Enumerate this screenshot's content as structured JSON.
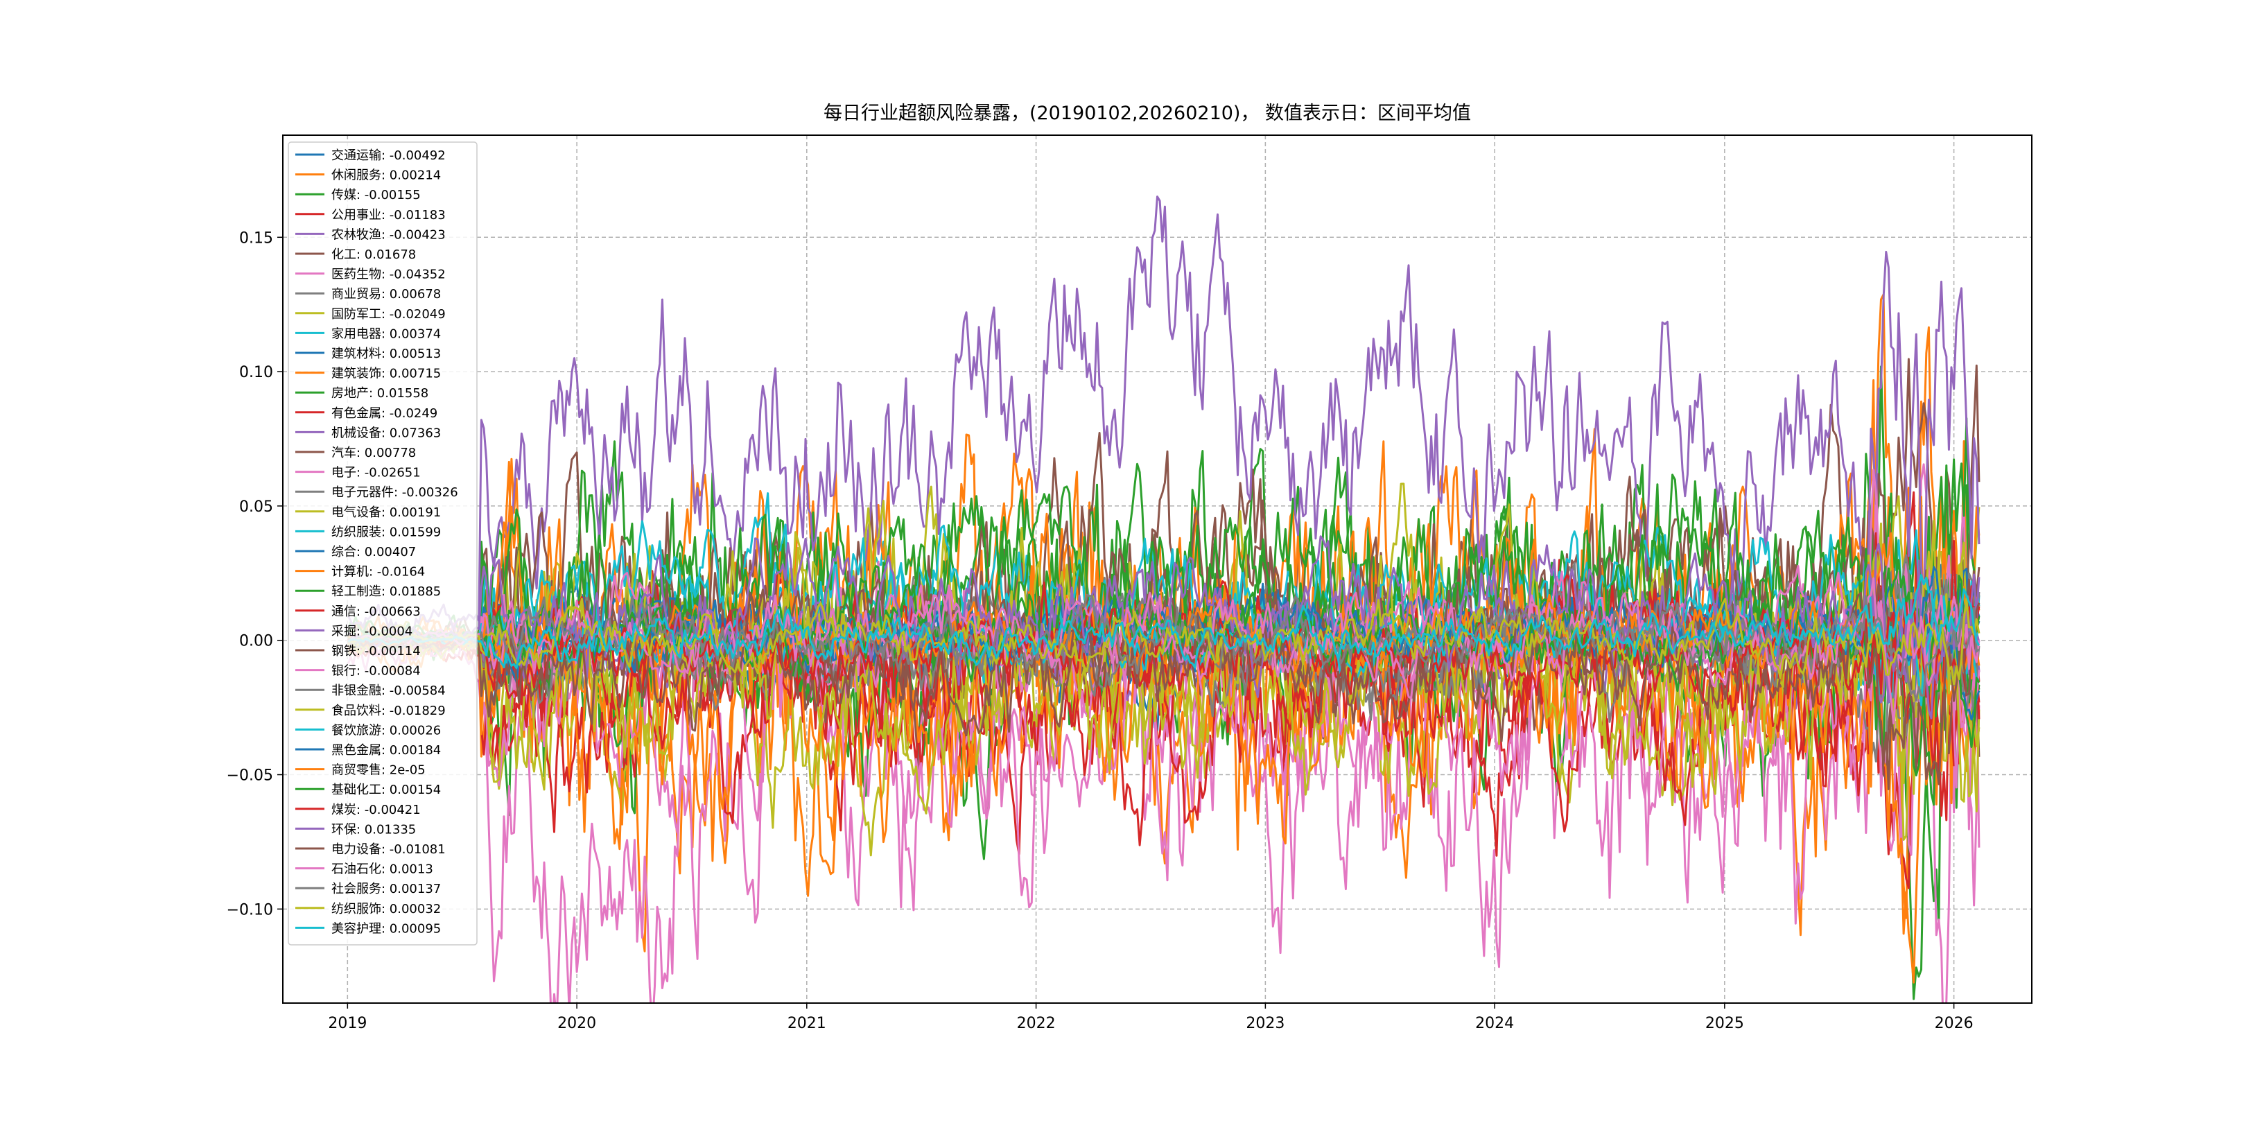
{
  "chart_data": {
    "type": "line",
    "title": "每日行业超额风险暴露，(20190102,20260210)， 数值表示日：区间平均值",
    "xlabel": "",
    "ylabel": "",
    "x_ticks": [
      "2019",
      "2020",
      "2021",
      "2022",
      "2023",
      "2024",
      "2025",
      "2026"
    ],
    "y_ticks": [
      "0.15",
      "0.10",
      "0.05",
      "0.00",
      "−0.05",
      "−0.10"
    ],
    "y_tick_values": [
      0.15,
      0.1,
      0.05,
      0.0,
      -0.05,
      -0.1
    ],
    "xlim": [
      "2018-09-20",
      "2026-05-05"
    ],
    "ylim": [
      -0.135,
      0.188
    ],
    "date_range": [
      "2019-01-02",
      "2026-02-10"
    ],
    "grid": true,
    "grid_style": "dashed",
    "legend_position": "upper-left",
    "series": [
      {
        "name": "交通运输",
        "value": -0.00492,
        "label": "交通运输: -0.00492",
        "color": "#1f77b4",
        "base": -0.004,
        "amp": 0.01
      },
      {
        "name": "休闲服务",
        "value": 0.00214,
        "label": "休闲服务: 0.00214",
        "color": "#ff7f0e",
        "base": -0.012,
        "amp": 0.035
      },
      {
        "name": "传媒",
        "value": -0.00155,
        "label": "传媒: -0.00155",
        "color": "#2ca02c",
        "base": 0.004,
        "amp": 0.03
      },
      {
        "name": "公用事业",
        "value": -0.01183,
        "label": "公用事业: -0.01183",
        "color": "#d62728",
        "base": -0.018,
        "amp": 0.02
      },
      {
        "name": "农林牧渔",
        "value": -0.00423,
        "label": "农林牧渔: -0.00423",
        "color": "#9467bd",
        "base": -0.004,
        "amp": 0.008
      },
      {
        "name": "化工",
        "value": 0.01678,
        "label": "化工: 0.01678",
        "color": "#8c564b",
        "base": 0.017,
        "amp": 0.025
      },
      {
        "name": "医药生物",
        "value": -0.04352,
        "label": "医药生物: -0.04352",
        "color": "#e377c2",
        "base": -0.05,
        "amp": 0.035
      },
      {
        "name": "商业贸易",
        "value": 0.00678,
        "label": "商业贸易: 0.00678",
        "color": "#7f7f7f",
        "base": 0.007,
        "amp": 0.008
      },
      {
        "name": "国防军工",
        "value": -0.02049,
        "label": "国防军工: -0.02049",
        "color": "#bcbd22",
        "base": -0.021,
        "amp": 0.02
      },
      {
        "name": "家用电器",
        "value": 0.00374,
        "label": "家用电器: 0.00374",
        "color": "#17becf",
        "base": 0.004,
        "amp": 0.012
      },
      {
        "name": "建筑材料",
        "value": 0.00513,
        "label": "建筑材料: 0.00513",
        "color": "#1f77b4",
        "base": 0.005,
        "amp": 0.01
      },
      {
        "name": "建筑装饰",
        "value": 0.00715,
        "label": "建筑装饰: 0.00715",
        "color": "#ff7f0e",
        "base": 0.007,
        "amp": 0.03
      },
      {
        "name": "房地产",
        "value": 0.01558,
        "label": "房地产: 0.01558",
        "color": "#2ca02c",
        "base": 0.016,
        "amp": 0.022
      },
      {
        "name": "有色金属",
        "value": -0.0249,
        "label": "有色金属: -0.0249",
        "color": "#d62728",
        "base": -0.025,
        "amp": 0.02
      },
      {
        "name": "机械设备",
        "value": 0.07363,
        "label": "机械设备: 0.07363",
        "color": "#9467bd",
        "base": 0.074,
        "amp": 0.025
      },
      {
        "name": "汽车",
        "value": 0.00778,
        "label": "汽车: 0.00778",
        "color": "#8c564b",
        "base": 0.008,
        "amp": 0.018
      },
      {
        "name": "电子",
        "value": -0.02651,
        "label": "电子: -0.02651",
        "color": "#e377c2",
        "base": -0.027,
        "amp": 0.02
      },
      {
        "name": "电子元器件",
        "value": -0.00326,
        "label": "电子元器件: -0.00326",
        "color": "#7f7f7f",
        "base": -0.003,
        "amp": 0.01
      },
      {
        "name": "电气设备",
        "value": 0.00191,
        "label": "电气设备: 0.00191",
        "color": "#bcbd22",
        "base": 0.002,
        "amp": 0.022
      },
      {
        "name": "纺织服装",
        "value": 0.01599,
        "label": "纺织服装: 0.01599",
        "color": "#17becf",
        "base": 0.016,
        "amp": 0.012
      },
      {
        "name": "综合",
        "value": 0.00407,
        "label": "综合: 0.00407",
        "color": "#1f77b4",
        "base": 0.004,
        "amp": 0.006
      },
      {
        "name": "计算机",
        "value": -0.0164,
        "label": "计算机: -0.0164",
        "color": "#ff7f0e",
        "base": -0.016,
        "amp": 0.025
      },
      {
        "name": "轻工制造",
        "value": 0.01885,
        "label": "轻工制造: 0.01885",
        "color": "#2ca02c",
        "base": 0.019,
        "amp": 0.018
      },
      {
        "name": "通信",
        "value": -0.00663,
        "label": "通信: -0.00663",
        "color": "#d62728",
        "base": -0.007,
        "amp": 0.015
      },
      {
        "name": "采掘",
        "value": -0.0004,
        "label": "采掘: -0.0004",
        "color": "#9467bd",
        "base": 0.0,
        "amp": 0.006
      },
      {
        "name": "钢铁",
        "value": -0.00114,
        "label": "钢铁: -0.00114",
        "color": "#8c564b",
        "base": -0.001,
        "amp": 0.01
      },
      {
        "name": "银行",
        "value": -0.00084,
        "label": "银行: -0.00084",
        "color": "#e377c2",
        "base": -0.001,
        "amp": 0.01
      },
      {
        "name": "非银金融",
        "value": -0.00584,
        "label": "非银金融: -0.00584",
        "color": "#7f7f7f",
        "base": -0.006,
        "amp": 0.01
      },
      {
        "name": "食品饮料",
        "value": -0.01829,
        "label": "食品饮料: -0.01829",
        "color": "#bcbd22",
        "base": -0.018,
        "amp": 0.018
      },
      {
        "name": "餐饮旅游",
        "value": 0.00026,
        "label": "餐饮旅游: 0.00026",
        "color": "#17becf",
        "base": 0.0,
        "amp": 0.006
      },
      {
        "name": "黑色金属",
        "value": 0.00184,
        "label": "黑色金属: 0.00184",
        "color": "#1f77b4",
        "base": 0.002,
        "amp": 0.006
      },
      {
        "name": "商贸零售",
        "value": 2e-05,
        "label": "商贸零售: 2e-05",
        "color": "#ff7f0e",
        "base": 0.0,
        "amp": 0.008
      },
      {
        "name": "基础化工",
        "value": 0.00154,
        "label": "基础化工: 0.00154",
        "color": "#2ca02c",
        "base": 0.002,
        "amp": 0.008
      },
      {
        "name": "煤炭",
        "value": -0.00421,
        "label": "煤炭: -0.00421",
        "color": "#d62728",
        "base": -0.004,
        "amp": 0.008
      },
      {
        "name": "环保",
        "value": 0.01335,
        "label": "环保: 0.01335",
        "color": "#9467bd",
        "base": 0.013,
        "amp": 0.012
      },
      {
        "name": "电力设备",
        "value": -0.01081,
        "label": "电力设备: -0.01081",
        "color": "#8c564b",
        "base": -0.011,
        "amp": 0.012
      },
      {
        "name": "石油石化",
        "value": 0.0013,
        "label": "石油石化: 0.0013",
        "color": "#e377c2",
        "base": 0.001,
        "amp": 0.008
      },
      {
        "name": "社会服务",
        "value": 0.00137,
        "label": "社会服务: 0.00137",
        "color": "#7f7f7f",
        "base": 0.001,
        "amp": 0.006
      },
      {
        "name": "纺织服饰",
        "value": 0.00032,
        "label": "纺织服饰: 0.00032",
        "color": "#bcbd22",
        "base": 0.0,
        "amp": 0.006
      },
      {
        "name": "美容护理",
        "value": 0.00095,
        "label": "美容护理: 0.00095",
        "color": "#17becf",
        "base": 0.001,
        "amp": 0.005
      }
    ]
  }
}
